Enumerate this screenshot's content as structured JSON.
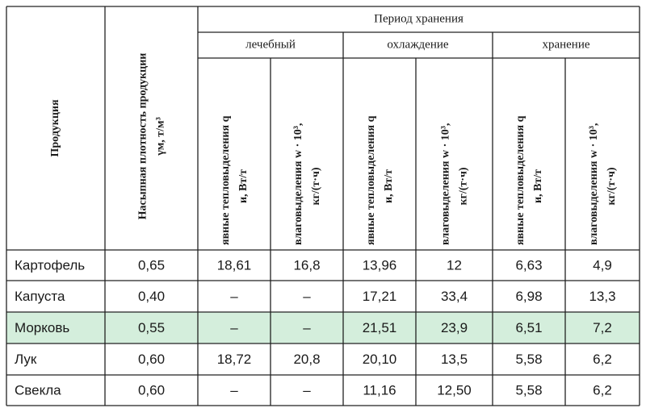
{
  "table": {
    "header": {
      "product": "Продукция",
      "density": [
        "Насыпная плотность продукции",
        "γм, т/м³"
      ],
      "period": "Период хранения",
      "groups": [
        "лечебный",
        "охлаждение",
        "хранение"
      ],
      "columns": [
        [
          "явные тепловыделения q",
          "и, Вт/т"
        ],
        [
          "влаговыделения w · 10³,",
          "кг/(т·ч)"
        ],
        [
          "явные тепловыделения q",
          "и, Вт/т"
        ],
        [
          "влаговыделения w · 10³,",
          "кг/(т·ч)"
        ],
        [
          "явные тепловыделения q",
          "и, Вт/т"
        ],
        [
          "влаговыделения w · 10³,",
          "кг/(т·ч)"
        ]
      ]
    },
    "rows": [
      [
        "Картофель",
        "0,65",
        "18,61",
        "16,8",
        "13,96",
        "12",
        "6,63",
        "4,9"
      ],
      [
        "Капуста",
        "0,40",
        "–",
        "–",
        "17,21",
        "33,4",
        "6,98",
        "13,3"
      ],
      [
        "Морковь",
        "0,55",
        "–",
        "–",
        "21,51",
        "23,9",
        "6,51",
        "7,2"
      ],
      [
        "Лук",
        "0,60",
        "18,72",
        "20,8",
        "20,10",
        "13,5",
        "5,58",
        "6,2"
      ],
      [
        "Свекла",
        "0,60",
        "–",
        "–",
        "11,16",
        "12,50",
        "5,58",
        "6,2"
      ]
    ]
  }
}
